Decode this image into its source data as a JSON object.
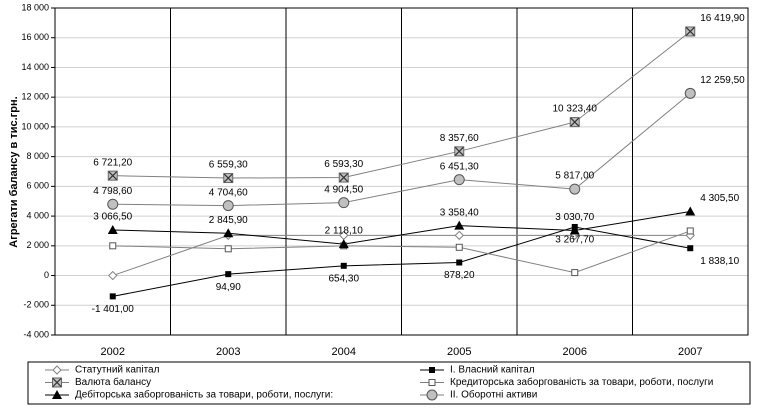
{
  "chart_data": {
    "type": "line",
    "y_label": "Агрегати балансу в тис.грн.",
    "categories": [
      "2002",
      "2003",
      "2004",
      "2005",
      "2006",
      "2007"
    ],
    "ylim": [
      -4000,
      18000
    ],
    "yticks": [
      {
        "value": -4000,
        "label": "-4 000"
      },
      {
        "value": -2000,
        "label": "-2 000"
      },
      0,
      {
        "value": 2000,
        "label": "2 000"
      },
      {
        "value": 4000,
        "label": "4 000"
      },
      {
        "value": 6000,
        "label": "6 000"
      },
      {
        "value": 8000,
        "label": "8 000"
      },
      {
        "value": 10000,
        "label": "10 000"
      },
      {
        "value": 12000,
        "label": "12 000"
      },
      {
        "value": 14000,
        "label": "14 000"
      },
      {
        "value": 16000,
        "label": "16 000"
      },
      {
        "value": 18000,
        "label": "18 000"
      }
    ],
    "grid": true,
    "series": [
      {
        "name": "Статутний капітал",
        "color": "#808080",
        "marker": "diamond",
        "values": [
          0,
          2700,
          2700,
          2700,
          2700,
          2700
        ]
      },
      {
        "name": "І. Власний капітал",
        "color": "#000000",
        "marker": "square",
        "label_position": "below",
        "values": [
          -1401.0,
          94.9,
          654.3,
          878.2,
          3267.7,
          1838.1
        ],
        "value_labels": [
          "-1 401,00",
          "94,90",
          "654,30",
          "878,20",
          "3 267,70",
          "1 838,10"
        ]
      },
      {
        "name": "Валюта балансу",
        "color": "#808080",
        "marker": "x",
        "label_position": "above",
        "values": [
          6721.2,
          6559.3,
          6593.3,
          8357.6,
          10323.4,
          16419.9
        ],
        "value_labels": [
          "6 721,20",
          "6 559,30",
          "6 593,30",
          "8 357,60",
          "10 323,40",
          "16 419,90"
        ]
      },
      {
        "name": "Кредиторська заборгованість за товари, роботи, послуги",
        "color": "#808080",
        "marker": "square-open",
        "values": [
          2000,
          1800,
          2000,
          1900,
          200,
          3000
        ]
      },
      {
        "name": "Дебіторська заборгованість за товари, роботи, послуги:",
        "color": "#000000",
        "marker": "triangle",
        "label_position": "above",
        "values": [
          3066.5,
          2845.9,
          2118.1,
          3358.4,
          3030.7,
          4305.5
        ],
        "value_labels": [
          "3 066,50",
          "2 845,90",
          "2 118,10",
          "3 358,40",
          "3 030,70",
          "4 305,50"
        ]
      },
      {
        "name": "ІІ. Оборотні активи",
        "color": "#808080",
        "marker": "circle",
        "label_position": "above",
        "values": [
          4798.6,
          4704.6,
          4904.5,
          6451.3,
          5817.0,
          12259.5
        ],
        "value_labels": [
          "4 798,60",
          "4 704,60",
          "4 904,50",
          "6 451,30",
          "5 817,00",
          "12 259,50"
        ]
      }
    ]
  }
}
